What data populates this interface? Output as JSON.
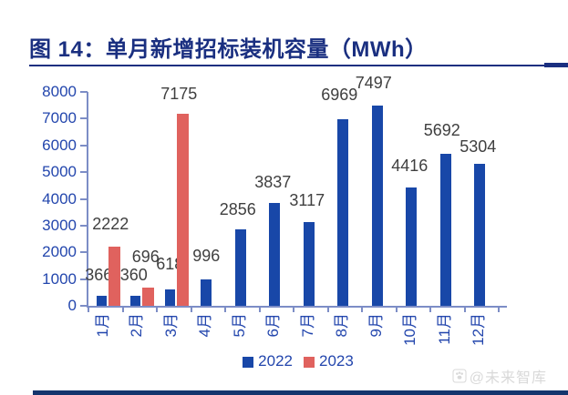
{
  "figure": {
    "title": "图 14：单月新增招标装机容量（MWh）"
  },
  "watermark": {
    "icon": "paw-icon",
    "text": "@未来智库"
  },
  "colors": {
    "navy": "#1A2F80",
    "navy_footer": "#14356D",
    "axis": "#7C8DC6",
    "tick_label": "#2346AD",
    "data_label": "#3F3F3F",
    "watermark": "#D9D9D9",
    "bar_2022": "#1847A8",
    "bar_2023": "#E0625E"
  },
  "chart_data": {
    "type": "bar",
    "title": "单月新增招标装机容量（MWh）",
    "categories": [
      "1月",
      "2月",
      "3月",
      "4月",
      "5月",
      "6月",
      "7月",
      "8月",
      "9月",
      "10月",
      "11月",
      "12月"
    ],
    "series": [
      {
        "name": "2022",
        "color": "#1847A8",
        "values": [
          366,
          360,
          618,
          996,
          2856,
          3837,
          3117,
          6969,
          7497,
          4416,
          5692,
          5304
        ]
      },
      {
        "name": "2023",
        "color": "#E0625E",
        "values": [
          2222,
          696,
          7175,
          null,
          null,
          null,
          null,
          null,
          null,
          null,
          null,
          null
        ]
      }
    ],
    "ylim": [
      0,
      8000
    ],
    "ytick_step": 1000,
    "xlabel": "",
    "ylabel": "",
    "grid": false,
    "legend_position": "bottom",
    "label_offsets": {
      "s2022": {
        "dx": [
          -3,
          -2,
          0,
          0,
          -3,
          -2,
          -2,
          -4,
          -4,
          -2,
          -4,
          -2
        ],
        "dy": [
          0,
          0,
          -5,
          -3,
          1,
          0,
          -1,
          -4,
          -2,
          -1,
          -3,
          4
        ]
      },
      "s2023": {
        "dx": [
          -4,
          -3,
          -4
        ],
        "dy": [
          -2,
          -11,
          1
        ]
      }
    }
  }
}
